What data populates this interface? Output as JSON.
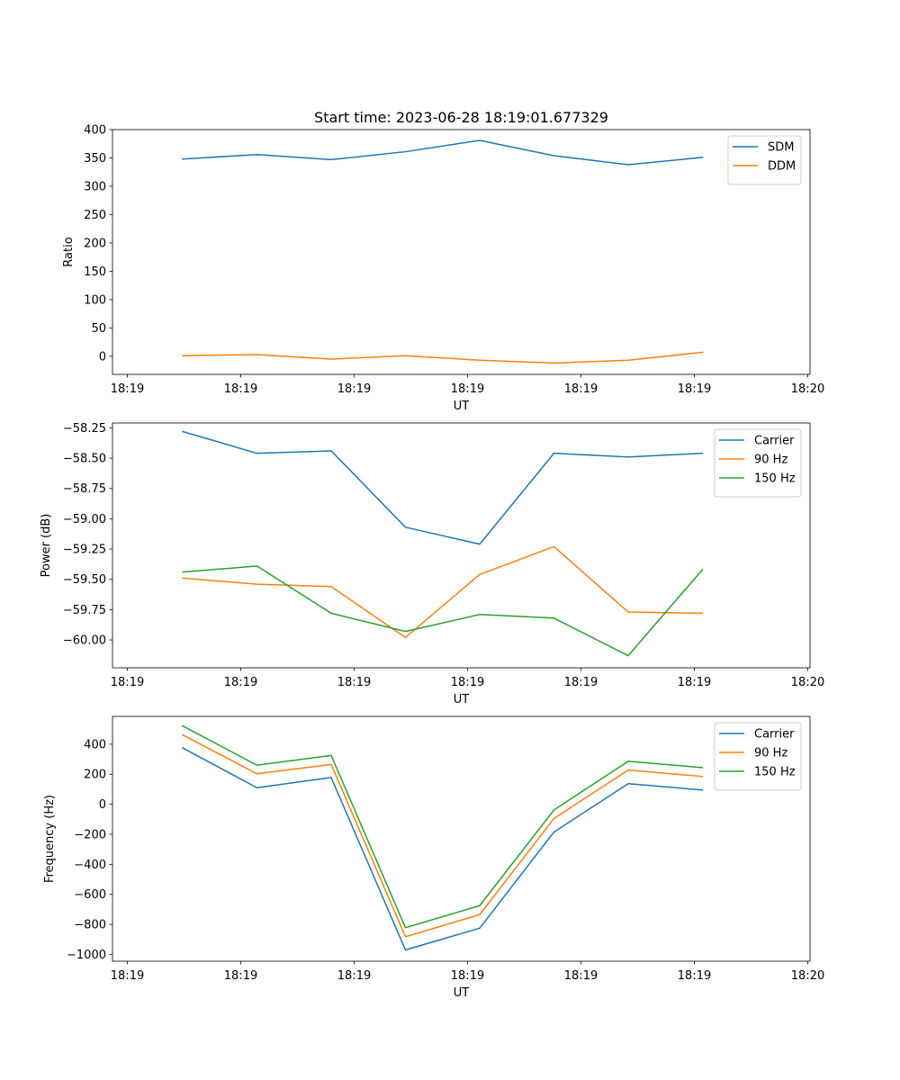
{
  "figure_title": "Start time: 2023-06-28 18:19:01.677329",
  "chart_data": [
    {
      "type": "line",
      "title": "",
      "xlabel": "UT",
      "ylabel": "Ratio",
      "x_tick_labels": [
        "18:19",
        "18:19",
        "18:19",
        "18:19",
        "18:19",
        "18:19",
        "18:20"
      ],
      "y_ticks": [
        0,
        50,
        100,
        150,
        200,
        250,
        300,
        350,
        400
      ],
      "y_tick_labels": [
        "0",
        "50",
        "100",
        "150",
        "200",
        "250",
        "300",
        "350",
        "400"
      ],
      "ylim": [
        -32,
        400
      ],
      "grid": false,
      "legend_position": "top-right",
      "series": [
        {
          "name": "SDM",
          "color": "#1f77b4",
          "values": [
            348,
            356,
            347,
            361,
            381,
            354,
            338,
            351
          ]
        },
        {
          "name": "DDM",
          "color": "#ff7f0e",
          "values": [
            1,
            3,
            -5,
            1,
            -7,
            -12,
            -7,
            7
          ]
        }
      ]
    },
    {
      "type": "line",
      "title": "",
      "xlabel": "UT",
      "ylabel": "Power (dB)",
      "x_tick_labels": [
        "18:19",
        "18:19",
        "18:19",
        "18:19",
        "18:19",
        "18:19",
        "18:20"
      ],
      "y_ticks": [
        -60.0,
        -59.75,
        -59.5,
        -59.25,
        -59.0,
        -58.75,
        -58.5,
        -58.25
      ],
      "y_tick_labels": [
        "−60.00",
        "−59.75",
        "−59.50",
        "−59.25",
        "−59.00",
        "−58.75",
        "−58.50",
        "−58.25"
      ],
      "ylim": [
        -60.23,
        -58.21
      ],
      "grid": false,
      "legend_position": "top-right",
      "series": [
        {
          "name": "Carrier",
          "color": "#1f77b4",
          "values": [
            -58.28,
            -58.46,
            -58.44,
            -59.07,
            -59.21,
            -58.46,
            -58.49,
            -58.46
          ]
        },
        {
          "name": "90 Hz",
          "color": "#ff7f0e",
          "values": [
            -59.49,
            -59.54,
            -59.56,
            -59.98,
            -59.46,
            -59.23,
            -59.77,
            -59.78
          ]
        },
        {
          "name": "150 Hz",
          "color": "#2ca02c",
          "values": [
            -59.44,
            -59.39,
            -59.78,
            -59.93,
            -59.79,
            -59.82,
            -60.13,
            -59.42
          ]
        }
      ]
    },
    {
      "type": "line",
      "title": "",
      "xlabel": "UT",
      "ylabel": "Frequency (Hz)",
      "x_tick_labels": [
        "18:19",
        "18:19",
        "18:19",
        "18:19",
        "18:19",
        "18:19",
        "18:20"
      ],
      "y_ticks": [
        -1000,
        -800,
        -600,
        -400,
        -200,
        0,
        200,
        400
      ],
      "y_tick_labels": [
        "−1000",
        "−800",
        "−600",
        "−400",
        "−200",
        "0",
        "200",
        "400"
      ],
      "ylim": [
        -1045,
        585
      ],
      "grid": false,
      "legend_position": "top-right",
      "series": [
        {
          "name": "Carrier",
          "color": "#1f77b4",
          "values": [
            375,
            110,
            178,
            -970,
            -825,
            -185,
            137,
            95
          ]
        },
        {
          "name": "90 Hz",
          "color": "#ff7f0e",
          "values": [
            462,
            203,
            265,
            -882,
            -735,
            -95,
            228,
            185
          ]
        },
        {
          "name": "150 Hz",
          "color": "#2ca02c",
          "values": [
            522,
            260,
            325,
            -822,
            -675,
            -38,
            286,
            244
          ]
        }
      ]
    }
  ]
}
